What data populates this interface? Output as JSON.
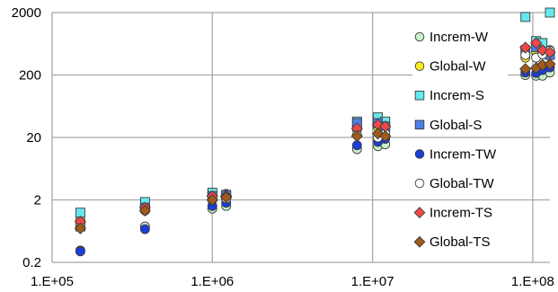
{
  "chart_data": {
    "type": "scatter",
    "title": "",
    "xlabel": "",
    "ylabel": "",
    "xscale": "log",
    "yscale": "log",
    "xlim": [
      100000,
      140000000
    ],
    "ylim": [
      0.2,
      2000
    ],
    "xticks": [
      {
        "value": 100000,
        "label": "1.E+05"
      },
      {
        "value": 1000000,
        "label": "1.E+06"
      },
      {
        "value": 10000000,
        "label": "1.E+07"
      },
      {
        "value": 100000000,
        "label": "1.E+08"
      }
    ],
    "yticks": [
      {
        "value": 0.2,
        "label": "0.2"
      },
      {
        "value": 2,
        "label": "2"
      },
      {
        "value": 20,
        "label": "20"
      },
      {
        "value": 200,
        "label": "200"
      },
      {
        "value": 2000,
        "label": "2000"
      }
    ],
    "grid": {
      "horizontal": true,
      "vertical": true
    },
    "legend_position": "right",
    "series": [
      {
        "name": "Increm-W",
        "marker": "circle",
        "fill": "#c8f0c8",
        "points": [
          [
            150000,
            0.31
          ],
          [
            380000,
            0.75
          ],
          [
            1000000,
            1.45
          ],
          [
            1220000,
            1.6
          ],
          [
            8000000,
            13
          ],
          [
            10800000,
            14.5
          ],
          [
            12000000,
            15.5
          ],
          [
            90000000,
            200
          ],
          [
            105000000,
            195
          ],
          [
            115000000,
            195
          ],
          [
            135000000,
            220
          ]
        ]
      },
      {
        "name": "Global-W",
        "marker": "circle",
        "fill": "#ffee22",
        "points": [
          [
            150000,
            0.95
          ],
          [
            380000,
            1.55
          ],
          [
            1000000,
            2.6
          ],
          [
            1220000,
            2.5
          ],
          [
            8000000,
            27
          ],
          [
            10800000,
            29
          ],
          [
            12000000,
            26
          ],
          [
            90000000,
            380
          ],
          [
            105000000,
            450
          ],
          [
            115000000,
            520
          ],
          [
            135000000,
            500
          ]
        ]
      },
      {
        "name": "Increm-S",
        "marker": "square",
        "fill": "#66e8ee",
        "points": [
          [
            150000,
            1.25
          ],
          [
            380000,
            1.85
          ],
          [
            1000000,
            2.6
          ],
          [
            1220000,
            2.4
          ],
          [
            8000000,
            36
          ],
          [
            10800000,
            42
          ],
          [
            12000000,
            36
          ],
          [
            90000000,
            1700
          ],
          [
            105000000,
            700
          ],
          [
            115000000,
            650
          ],
          [
            135000000,
            2000
          ]
        ]
      },
      {
        "name": "Global-S",
        "marker": "square",
        "fill": "#4f7fe8",
        "points": [
          [
            150000,
            0.75
          ],
          [
            380000,
            1.5
          ],
          [
            1000000,
            2.3
          ],
          [
            1220000,
            2.4
          ],
          [
            8000000,
            34
          ],
          [
            10800000,
            34
          ],
          [
            12000000,
            30
          ],
          [
            90000000,
            500
          ],
          [
            105000000,
            560
          ],
          [
            115000000,
            440
          ],
          [
            135000000,
            420
          ]
        ]
      },
      {
        "name": "Increm-TW",
        "marker": "circle",
        "fill": "#1a3ddd",
        "points": [
          [
            150000,
            0.3
          ],
          [
            380000,
            0.68
          ],
          [
            1000000,
            1.6
          ],
          [
            1220000,
            1.8
          ],
          [
            8000000,
            15
          ],
          [
            10800000,
            17
          ],
          [
            12000000,
            19
          ],
          [
            90000000,
            220
          ],
          [
            105000000,
            215
          ],
          [
            115000000,
            240
          ],
          [
            135000000,
            265
          ]
        ]
      },
      {
        "name": "Global-TW",
        "marker": "circle",
        "fill": "#ffffff",
        "points": [
          [
            150000,
            0.85
          ],
          [
            380000,
            1.35
          ],
          [
            1000000,
            2.0
          ],
          [
            1220000,
            2.1
          ],
          [
            8000000,
            22
          ],
          [
            10800000,
            20
          ],
          [
            12000000,
            23
          ],
          [
            90000000,
            420
          ],
          [
            105000000,
            380
          ],
          [
            115000000,
            430
          ],
          [
            135000000,
            490
          ]
        ]
      },
      {
        "name": "Increm-TS",
        "marker": "diamond",
        "fill": "#f04848",
        "points": [
          [
            150000,
            0.9
          ],
          [
            380000,
            1.5
          ],
          [
            1000000,
            2.3
          ],
          [
            1220000,
            2.3
          ],
          [
            8000000,
            28
          ],
          [
            10800000,
            32
          ],
          [
            12000000,
            30
          ],
          [
            90000000,
            550
          ],
          [
            105000000,
            650
          ],
          [
            115000000,
            500
          ],
          [
            135000000,
            460
          ]
        ]
      },
      {
        "name": "Global-TS",
        "marker": "diamond",
        "fill": "#a05a1c",
        "points": [
          [
            150000,
            0.7
          ],
          [
            380000,
            1.35
          ],
          [
            1000000,
            2.0
          ],
          [
            1220000,
            2.2
          ],
          [
            8000000,
            21
          ],
          [
            10800000,
            23
          ],
          [
            12000000,
            21
          ],
          [
            90000000,
            250
          ],
          [
            105000000,
            260
          ],
          [
            115000000,
            290
          ],
          [
            135000000,
            300
          ]
        ]
      }
    ]
  }
}
